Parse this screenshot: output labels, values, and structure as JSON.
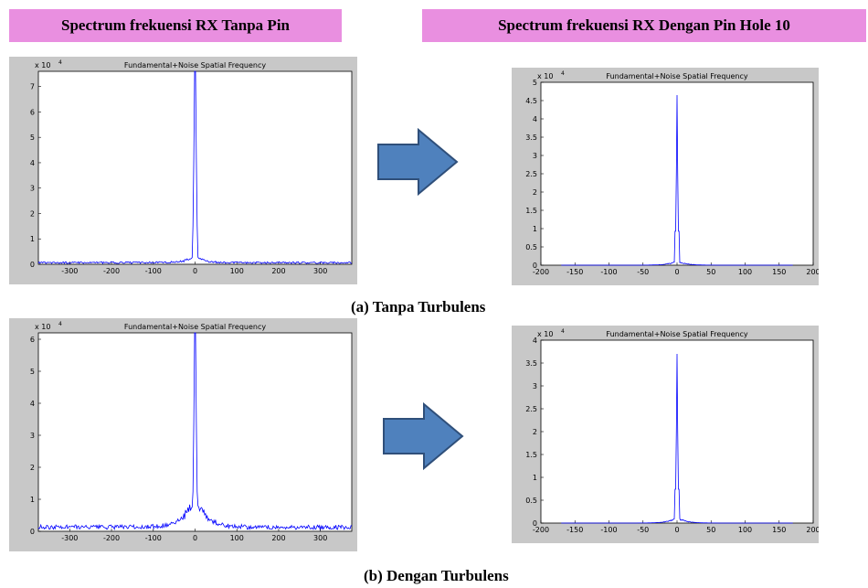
{
  "headers": {
    "left": "Spectrum frekuensi RX Tanpa Pin",
    "right": "Spectrum frekuensi RX Dengan Pin Hole 10"
  },
  "captions": {
    "a": "(a) Tanpa Turbulens",
    "b": "(b) Dengan  Turbulens"
  },
  "colors": {
    "header_bg": "#e98fe0",
    "arrow": "#4f81bd",
    "arrow_border": "#2f4f7a",
    "frame": "#c8c8c8",
    "line": "#0000ff"
  },
  "chart_data": [
    {
      "id": "a-left",
      "type": "line",
      "title": "Fundamental+Noise Spatial Frequency",
      "exponent": "x 10",
      "exponent_power": "4",
      "xlim": [
        -375,
        375
      ],
      "ylim": [
        0,
        7.6
      ],
      "xticks": [
        -300,
        -200,
        -100,
        0,
        100,
        200,
        300
      ],
      "yticks": [
        0,
        1,
        2,
        3,
        4,
        5,
        6,
        7
      ],
      "peak": 7.6,
      "noise": 0.1,
      "shoulder": 0.45,
      "width": 3,
      "step": 2
    },
    {
      "id": "a-right",
      "type": "line",
      "title": "Fundamental+Noise Spatial Frequency",
      "exponent": "x 10",
      "exponent_power": "4",
      "xlim": [
        -200,
        200
      ],
      "ylim": [
        0,
        5
      ],
      "xticks": [
        -200,
        -150,
        -100,
        -50,
        0,
        50,
        100,
        150,
        200
      ],
      "yticks": [
        0,
        0.5,
        1,
        1.5,
        2,
        2.5,
        3,
        3.5,
        4,
        4.5,
        5
      ],
      "peak": 4.65,
      "noise": 0.0,
      "shoulder": 0.15,
      "width": 2,
      "step": 1,
      "signal_range": [
        -170,
        170
      ]
    },
    {
      "id": "b-left",
      "type": "line",
      "title": "Fundamental+Noise Spatial Frequency",
      "exponent": "x 10",
      "exponent_power": "4",
      "xlim": [
        -375,
        375
      ],
      "ylim": [
        0,
        6.2
      ],
      "xticks": [
        -300,
        -200,
        -100,
        0,
        100,
        200,
        300
      ],
      "yticks": [
        0,
        1,
        2,
        3,
        4,
        5,
        6
      ],
      "peak": 6.2,
      "noise": 0.2,
      "shoulder": 1.3,
      "width": 4,
      "step": 2
    },
    {
      "id": "b-right",
      "type": "line",
      "title": "Fundamental+Noise Spatial Frequency",
      "exponent": "x 10",
      "exponent_power": "4",
      "xlim": [
        -200,
        200
      ],
      "ylim": [
        0,
        4
      ],
      "xticks": [
        -200,
        -150,
        -100,
        -50,
        0,
        50,
        100,
        150,
        200
      ],
      "yticks": [
        0,
        0.5,
        1,
        1.5,
        2,
        2.5,
        3,
        3.5,
        4
      ],
      "peak": 3.7,
      "noise": 0.0,
      "shoulder": 0.15,
      "width": 2,
      "step": 1,
      "signal_range": [
        -170,
        170
      ]
    }
  ]
}
